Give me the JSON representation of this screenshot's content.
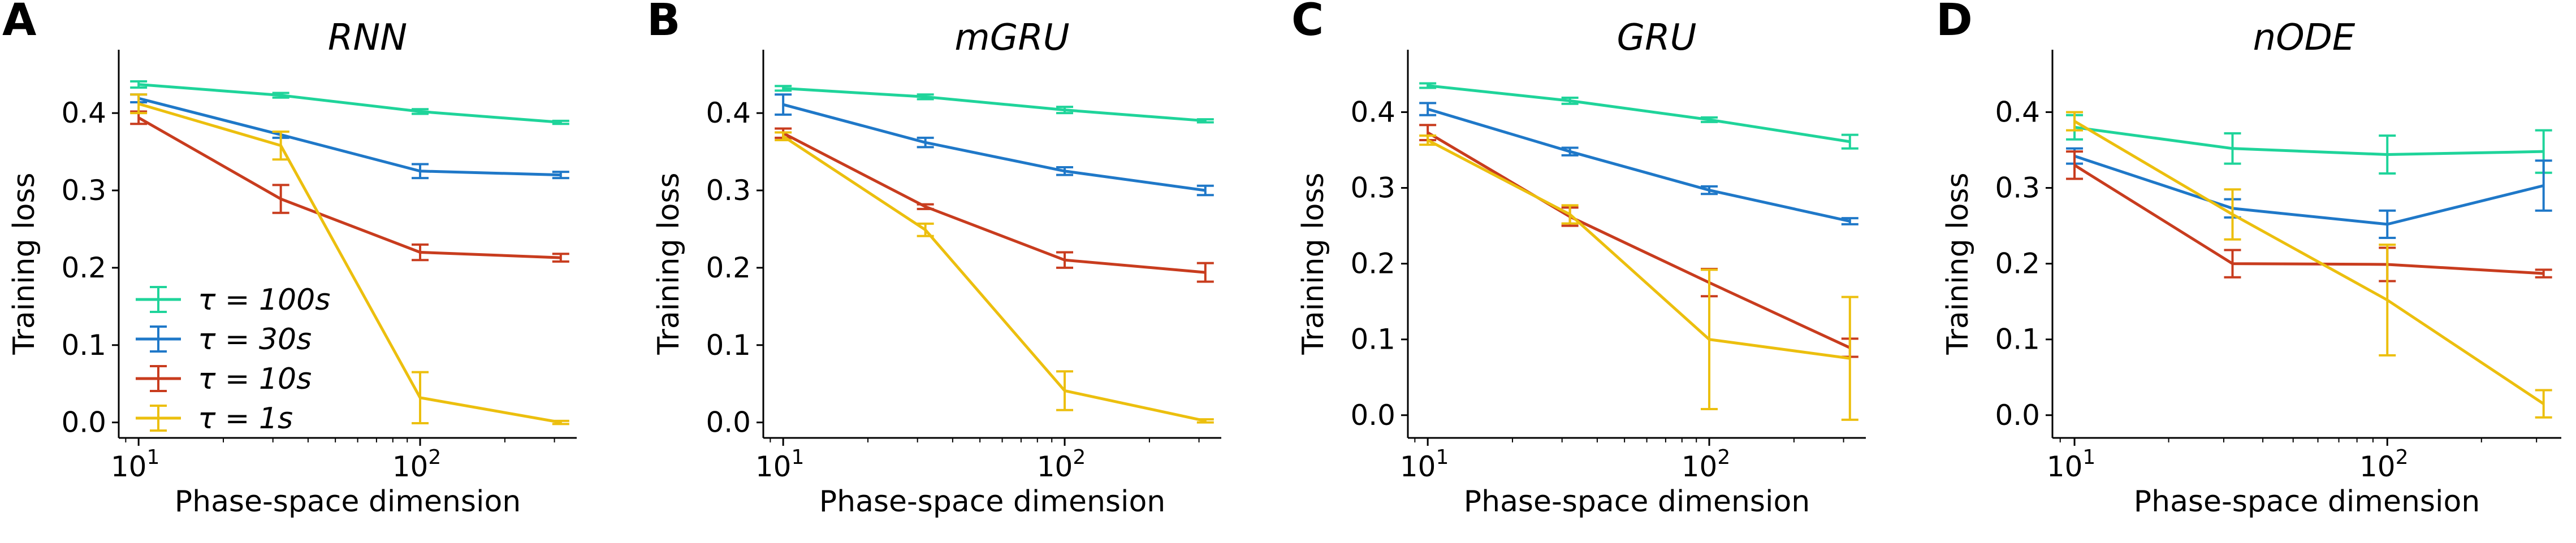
{
  "colors": {
    "tau_100s": "#1fd49a",
    "tau_30s": "#1f78c8",
    "tau_10s": "#c83c1e",
    "tau_1s": "#ecbf0e"
  },
  "legend": [
    {
      "key": "tau_100s",
      "label": "τ = 100s"
    },
    {
      "key": "tau_30s",
      "label": "τ = 30s"
    },
    {
      "key": "tau_10s",
      "label": "τ = 10s"
    },
    {
      "key": "tau_1s",
      "label": "τ = 1s"
    }
  ],
  "chart_data": [
    {
      "panel": "A",
      "title": "RNN",
      "type": "line",
      "xscale": "log",
      "xlabel": "Phase-space dimension",
      "ylabel": "Training loss",
      "x": [
        10,
        32,
        100,
        316
      ],
      "xlim": [
        8.5,
        360
      ],
      "ylim": [
        -0.02,
        0.46
      ],
      "yticks": [
        "0.0",
        "0.1",
        "0.2",
        "0.3",
        "0.4"
      ],
      "ytick_values": [
        0.0,
        0.1,
        0.2,
        0.3,
        0.4
      ],
      "xticks": [
        {
          "base": "10",
          "exp": "1",
          "value": 10
        },
        {
          "base": "10",
          "exp": "2",
          "value": 100
        }
      ],
      "series": [
        {
          "key": "tau_100s",
          "values": [
            0.437,
            0.423,
            0.402,
            0.388
          ],
          "errors": [
            0.004,
            0.003,
            0.003,
            0.002
          ]
        },
        {
          "key": "tau_30s",
          "values": [
            0.419,
            0.372,
            0.325,
            0.32
          ],
          "errors": [
            0.005,
            0.004,
            0.009,
            0.004
          ]
        },
        {
          "key": "tau_10s",
          "values": [
            0.394,
            0.289,
            0.22,
            0.213
          ],
          "errors": [
            0.008,
            0.018,
            0.01,
            0.005
          ]
        },
        {
          "key": "tau_1s",
          "values": [
            0.412,
            0.358,
            0.032,
            0.0
          ],
          "errors": [
            0.012,
            0.018,
            0.033,
            0.002
          ]
        }
      ],
      "show_legend": true,
      "legend_position": "bottom-left"
    },
    {
      "panel": "B",
      "title": "mGRU",
      "type": "line",
      "xscale": "log",
      "xlabel": "Phase-space dimension",
      "ylabel": "Training loss",
      "x": [
        10,
        32,
        100,
        316
      ],
      "xlim": [
        8.5,
        360
      ],
      "ylim": [
        -0.02,
        0.46
      ],
      "yticks": [
        "0.0",
        "0.1",
        "0.2",
        "0.3",
        "0.4"
      ],
      "ytick_values": [
        0.0,
        0.1,
        0.2,
        0.3,
        0.4
      ],
      "xticks": [
        {
          "base": "10",
          "exp": "1",
          "value": 10
        },
        {
          "base": "10",
          "exp": "2",
          "value": 100
        }
      ],
      "series": [
        {
          "key": "tau_100s",
          "values": [
            0.432,
            0.421,
            0.404,
            0.39
          ],
          "errors": [
            0.003,
            0.003,
            0.004,
            0.002
          ]
        },
        {
          "key": "tau_30s",
          "values": [
            0.411,
            0.362,
            0.325,
            0.3
          ],
          "errors": [
            0.013,
            0.006,
            0.005,
            0.006
          ]
        },
        {
          "key": "tau_10s",
          "values": [
            0.374,
            0.279,
            0.21,
            0.194
          ],
          "errors": [
            0.006,
            0.003,
            0.01,
            0.012
          ]
        },
        {
          "key": "tau_1s",
          "values": [
            0.37,
            0.249,
            0.041,
            0.002
          ],
          "errors": [
            0.005,
            0.008,
            0.025,
            0.002
          ]
        }
      ],
      "show_legend": false
    },
    {
      "panel": "C",
      "title": "GRU",
      "type": "line",
      "xscale": "log",
      "xlabel": "Phase-space dimension",
      "ylabel": "Training loss",
      "x": [
        10,
        32,
        100,
        316
      ],
      "xlim": [
        8.5,
        360
      ],
      "ylim": [
        -0.03,
        0.46
      ],
      "yticks": [
        "0.0",
        "0.1",
        "0.2",
        "0.3",
        "0.4"
      ],
      "ytick_values": [
        0.0,
        0.1,
        0.2,
        0.3,
        0.4
      ],
      "xticks": [
        {
          "base": "10",
          "exp": "1",
          "value": 10
        },
        {
          "base": "10",
          "exp": "2",
          "value": 100
        }
      ],
      "series": [
        {
          "key": "tau_100s",
          "values": [
            0.435,
            0.415,
            0.39,
            0.361
          ],
          "errors": [
            0.003,
            0.004,
            0.003,
            0.009
          ]
        },
        {
          "key": "tau_30s",
          "values": [
            0.404,
            0.348,
            0.297,
            0.256
          ],
          "errors": [
            0.008,
            0.005,
            0.005,
            0.004
          ]
        },
        {
          "key": "tau_10s",
          "values": [
            0.373,
            0.262,
            0.175,
            0.089
          ],
          "errors": [
            0.01,
            0.012,
            0.018,
            0.012
          ]
        },
        {
          "key": "tau_1s",
          "values": [
            0.363,
            0.265,
            0.1,
            0.075
          ],
          "errors": [
            0.006,
            0.012,
            0.092,
            0.081
          ]
        }
      ],
      "show_legend": false
    },
    {
      "panel": "D",
      "title": "nODE",
      "type": "line",
      "xscale": "log",
      "xlabel": "Phase-space dimension",
      "ylabel": "Training loss",
      "x": [
        10,
        32,
        100,
        316
      ],
      "xlim": [
        8.5,
        360
      ],
      "ylim": [
        -0.03,
        0.46
      ],
      "yticks": [
        "0.0",
        "0.1",
        "0.2",
        "0.3",
        "0.4"
      ],
      "ytick_values": [
        0.0,
        0.1,
        0.2,
        0.3,
        0.4
      ],
      "xticks": [
        {
          "base": "10",
          "exp": "1",
          "value": 10
        },
        {
          "base": "10",
          "exp": "2",
          "value": 100
        }
      ],
      "series": [
        {
          "key": "tau_100s",
          "values": [
            0.38,
            0.352,
            0.344,
            0.348
          ],
          "errors": [
            0.016,
            0.02,
            0.025,
            0.028
          ]
        },
        {
          "key": "tau_30s",
          "values": [
            0.342,
            0.273,
            0.252,
            0.303
          ],
          "errors": [
            0.01,
            0.012,
            0.018,
            0.033
          ]
        },
        {
          "key": "tau_10s",
          "values": [
            0.33,
            0.2,
            0.199,
            0.187
          ],
          "errors": [
            0.018,
            0.018,
            0.022,
            0.005
          ]
        },
        {
          "key": "tau_1s",
          "values": [
            0.388,
            0.265,
            0.152,
            0.015
          ],
          "errors": [
            0.012,
            0.033,
            0.073,
            0.018
          ]
        }
      ],
      "show_legend": false
    }
  ]
}
